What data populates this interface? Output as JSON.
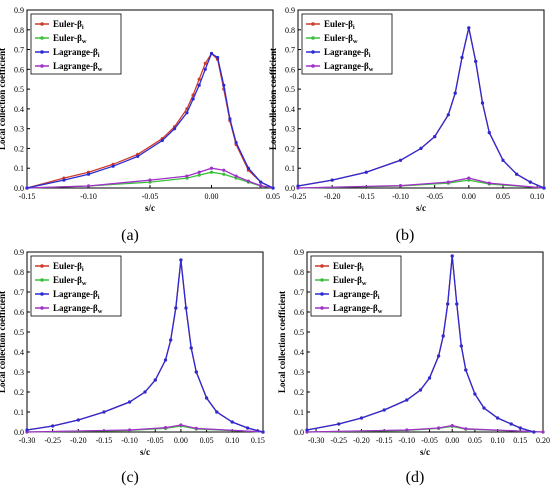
{
  "series_styles": [
    {
      "key": "euler_i",
      "color": "#d03a2a",
      "label": "Euler-β",
      "sub": "i"
    },
    {
      "key": "euler_w",
      "color": "#3cbf3c",
      "label": "Euler-β",
      "sub": "w"
    },
    {
      "key": "lagr_i",
      "color": "#2b2bd6",
      "label": "Lagrange-β",
      "sub": "i"
    },
    {
      "key": "lagr_w",
      "color": "#a030c8",
      "label": "Lagrange-β",
      "sub": "w"
    }
  ],
  "chart_data": [
    {
      "type": "line",
      "panel_label": "(a)",
      "xlabel": "s/c",
      "ylabel": "Local collection coefficient",
      "xlim": [
        -0.15,
        0.05
      ],
      "ylim": [
        0,
        0.9
      ],
      "xticks": [
        "-0.15",
        "-0.10",
        "-0.05",
        "0.00",
        "0.05"
      ],
      "yticks": [
        "0.0",
        "0.1",
        "0.2",
        "0.3",
        "0.4",
        "0.5",
        "0.6",
        "0.7",
        "0.8",
        "0.9"
      ],
      "legend_position": "top-left",
      "series": [
        {
          "name": "Euler-βi",
          "x": [
            -0.15,
            -0.12,
            -0.1,
            -0.08,
            -0.06,
            -0.04,
            -0.03,
            -0.02,
            -0.015,
            -0.01,
            -0.005,
            0,
            0.005,
            0.01,
            0.015,
            0.02,
            0.03,
            0.04,
            0.05
          ],
          "y": [
            0.0,
            0.05,
            0.08,
            0.12,
            0.17,
            0.25,
            0.31,
            0.4,
            0.47,
            0.55,
            0.63,
            0.68,
            0.65,
            0.5,
            0.34,
            0.22,
            0.09,
            0.03,
            0.0
          ]
        },
        {
          "name": "Euler-βw",
          "x": [
            -0.15,
            -0.1,
            -0.05,
            -0.02,
            -0.01,
            0,
            0.01,
            0.02,
            0.03,
            0.04,
            0.05
          ],
          "y": [
            0.0,
            0.01,
            0.03,
            0.05,
            0.065,
            0.08,
            0.07,
            0.05,
            0.03,
            0.01,
            0.0
          ]
        },
        {
          "name": "Lagrange-βi",
          "x": [
            -0.15,
            -0.12,
            -0.1,
            -0.08,
            -0.06,
            -0.04,
            -0.03,
            -0.02,
            -0.015,
            -0.01,
            -0.005,
            0,
            0.005,
            0.01,
            0.015,
            0.02,
            0.03,
            0.04,
            0.05
          ],
          "y": [
            0.0,
            0.04,
            0.07,
            0.11,
            0.16,
            0.24,
            0.3,
            0.38,
            0.45,
            0.52,
            0.6,
            0.68,
            0.66,
            0.52,
            0.35,
            0.23,
            0.1,
            0.03,
            0.0
          ]
        },
        {
          "name": "Lagrange-βw",
          "x": [
            -0.15,
            -0.1,
            -0.05,
            -0.02,
            -0.01,
            0,
            0.01,
            0.02,
            0.03,
            0.04,
            0.05
          ],
          "y": [
            0.0,
            0.01,
            0.04,
            0.06,
            0.08,
            0.1,
            0.09,
            0.06,
            0.035,
            0.012,
            0.0
          ]
        }
      ]
    },
    {
      "type": "line",
      "panel_label": "(b)",
      "xlabel": "s/c",
      "ylabel": "Local collection coefficient",
      "xlim": [
        -0.25,
        0.11
      ],
      "ylim": [
        0,
        0.9
      ],
      "xticks": [
        "-0.25",
        "-0.20",
        "-0.15",
        "-0.10",
        "-0.05",
        "0.00",
        "0.05",
        "0.10"
      ],
      "yticks": [
        "0.0",
        "0.1",
        "0.2",
        "0.3",
        "0.4",
        "0.5",
        "0.6",
        "0.7",
        "0.8",
        "0.9"
      ],
      "legend_position": "top-left",
      "series": [
        {
          "name": "Euler-βi",
          "x": [
            -0.25,
            -0.2,
            -0.15,
            -0.1,
            -0.07,
            -0.05,
            -0.03,
            -0.02,
            -0.01,
            0,
            0.01,
            0.02,
            0.03,
            0.05,
            0.07,
            0.09,
            0.11
          ],
          "y": [
            0.01,
            0.04,
            0.08,
            0.14,
            0.2,
            0.26,
            0.37,
            0.48,
            0.66,
            0.81,
            0.64,
            0.43,
            0.28,
            0.14,
            0.07,
            0.03,
            0.0
          ]
        },
        {
          "name": "Euler-βw",
          "x": [
            -0.25,
            -0.1,
            -0.03,
            0,
            0.03,
            0.11
          ],
          "y": [
            0.0,
            0.01,
            0.025,
            0.04,
            0.02,
            0.0
          ]
        },
        {
          "name": "Lagrange-βi",
          "x": [
            -0.25,
            -0.2,
            -0.15,
            -0.1,
            -0.07,
            -0.05,
            -0.03,
            -0.02,
            -0.01,
            0,
            0.01,
            0.02,
            0.03,
            0.05,
            0.07,
            0.09,
            0.11
          ],
          "y": [
            0.01,
            0.04,
            0.08,
            0.14,
            0.2,
            0.26,
            0.37,
            0.48,
            0.66,
            0.81,
            0.64,
            0.43,
            0.28,
            0.14,
            0.07,
            0.03,
            0.0
          ]
        },
        {
          "name": "Lagrange-βw",
          "x": [
            -0.25,
            -0.1,
            -0.03,
            0,
            0.03,
            0.11
          ],
          "y": [
            0.0,
            0.012,
            0.03,
            0.05,
            0.025,
            0.0
          ]
        }
      ]
    },
    {
      "type": "line",
      "panel_label": "(c)",
      "xlabel": "s/c",
      "ylabel": "Local collection coefficient",
      "xlim": [
        -0.3,
        0.16
      ],
      "ylim": [
        0,
        0.9
      ],
      "xticks": [
        "-0.30",
        "-0.25",
        "-0.20",
        "-0.15",
        "-0.10",
        "-0.05",
        "0.00",
        "0.05",
        "0.10",
        "0.15"
      ],
      "yticks": [
        "0.0",
        "0.1",
        "0.2",
        "0.3",
        "0.4",
        "0.5",
        "0.6",
        "0.7",
        "0.8",
        "0.9"
      ],
      "legend_position": "top-left",
      "series": [
        {
          "name": "Euler-βi",
          "x": [
            -0.3,
            -0.25,
            -0.2,
            -0.15,
            -0.1,
            -0.07,
            -0.05,
            -0.03,
            -0.02,
            -0.01,
            0,
            0.01,
            0.02,
            0.03,
            0.05,
            0.07,
            0.1,
            0.13,
            0.16
          ],
          "y": [
            0.01,
            0.03,
            0.06,
            0.1,
            0.15,
            0.2,
            0.26,
            0.36,
            0.46,
            0.62,
            0.86,
            0.62,
            0.42,
            0.3,
            0.17,
            0.1,
            0.05,
            0.02,
            0.0
          ]
        },
        {
          "name": "Euler-βw",
          "x": [
            -0.3,
            -0.1,
            -0.03,
            0,
            0.03,
            0.16
          ],
          "y": [
            0.0,
            0.008,
            0.018,
            0.03,
            0.015,
            0.0
          ]
        },
        {
          "name": "Lagrange-βi",
          "x": [
            -0.3,
            -0.25,
            -0.2,
            -0.15,
            -0.1,
            -0.07,
            -0.05,
            -0.03,
            -0.02,
            -0.01,
            0,
            0.01,
            0.02,
            0.03,
            0.05,
            0.07,
            0.1,
            0.13,
            0.16
          ],
          "y": [
            0.01,
            0.03,
            0.06,
            0.1,
            0.15,
            0.2,
            0.26,
            0.36,
            0.46,
            0.62,
            0.86,
            0.62,
            0.42,
            0.3,
            0.17,
            0.1,
            0.05,
            0.02,
            0.0
          ]
        },
        {
          "name": "Lagrange-βw",
          "x": [
            -0.3,
            -0.1,
            -0.03,
            0,
            0.03,
            0.16
          ],
          "y": [
            0.0,
            0.01,
            0.022,
            0.035,
            0.018,
            0.0
          ]
        }
      ]
    },
    {
      "type": "line",
      "panel_label": "(d)",
      "xlabel": "s/c",
      "ylabel": "Local collection coefficient",
      "xlim": [
        -0.32,
        0.2
      ],
      "ylim": [
        0,
        0.9
      ],
      "xticks": [
        "-0.30",
        "-0.25",
        "-0.20",
        "-0.15",
        "-0.10",
        "-0.05",
        "0.00",
        "0.05",
        "0.10",
        "0.15",
        "0.20"
      ],
      "yticks": [
        "0.0",
        "0.1",
        "0.2",
        "0.3",
        "0.4",
        "0.5",
        "0.6",
        "0.7",
        "0.8",
        "0.9"
      ],
      "legend_position": "top-left",
      "series": [
        {
          "name": "Euler-βi",
          "x": [
            -0.32,
            -0.25,
            -0.2,
            -0.15,
            -0.1,
            -0.07,
            -0.05,
            -0.03,
            -0.02,
            -0.01,
            0,
            0.01,
            0.02,
            0.03,
            0.05,
            0.07,
            0.1,
            0.13,
            0.15,
            0.18
          ],
          "y": [
            0.01,
            0.04,
            0.07,
            0.11,
            0.16,
            0.21,
            0.27,
            0.38,
            0.48,
            0.64,
            0.88,
            0.64,
            0.43,
            0.31,
            0.19,
            0.12,
            0.07,
            0.04,
            0.02,
            0.0
          ]
        },
        {
          "name": "Euler-βw",
          "x": [
            -0.32,
            -0.1,
            -0.03,
            0,
            0.03,
            0.2
          ],
          "y": [
            0.0,
            0.008,
            0.018,
            0.028,
            0.014,
            0.0
          ]
        },
        {
          "name": "Lagrange-βi",
          "x": [
            -0.32,
            -0.25,
            -0.2,
            -0.15,
            -0.1,
            -0.07,
            -0.05,
            -0.03,
            -0.02,
            -0.01,
            0,
            0.01,
            0.02,
            0.03,
            0.05,
            0.07,
            0.1,
            0.13,
            0.15,
            0.18
          ],
          "y": [
            0.01,
            0.04,
            0.07,
            0.11,
            0.16,
            0.21,
            0.27,
            0.38,
            0.48,
            0.64,
            0.88,
            0.64,
            0.43,
            0.31,
            0.19,
            0.12,
            0.07,
            0.04,
            0.02,
            0.0
          ]
        },
        {
          "name": "Lagrange-βw",
          "x": [
            -0.32,
            -0.1,
            -0.03,
            0,
            0.03,
            0.2
          ],
          "y": [
            0.0,
            0.01,
            0.02,
            0.032,
            0.016,
            0.0
          ]
        }
      ]
    }
  ]
}
